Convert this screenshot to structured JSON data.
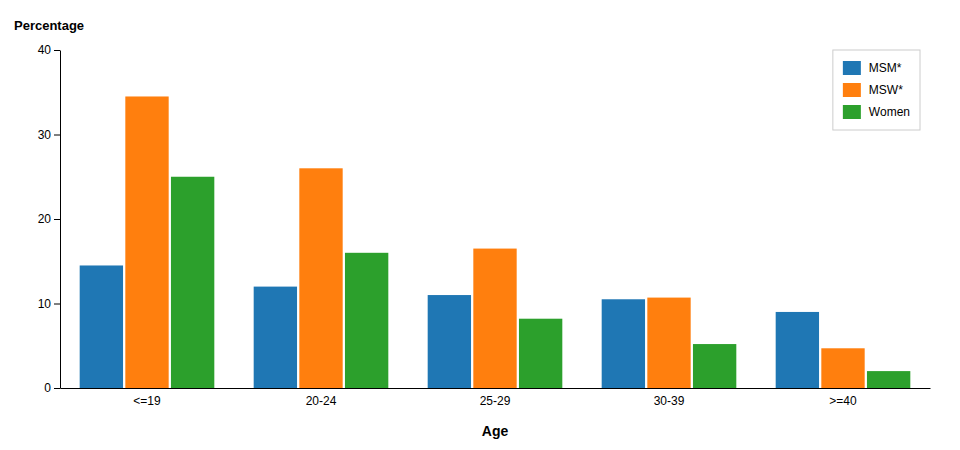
{
  "chart_data": {
    "type": "bar",
    "categories": [
      "<=19",
      "20-24",
      "25-29",
      "30-39",
      ">=40"
    ],
    "series": [
      {
        "name": "MSM*",
        "values": [
          14.5,
          12.0,
          11.0,
          10.5,
          9.0
        ]
      },
      {
        "name": "MSW*",
        "values": [
          34.5,
          26.0,
          16.5,
          10.7,
          4.7
        ]
      },
      {
        "name": "Women",
        "values": [
          25.0,
          16.0,
          8.2,
          5.2,
          2.0
        ]
      }
    ],
    "xlabel": "Age",
    "ylabel": "Percentage",
    "ylim": [
      0,
      40
    ],
    "yticks": [
      0,
      10,
      20,
      30,
      40
    ],
    "grid": false,
    "legend": "upper-right"
  }
}
